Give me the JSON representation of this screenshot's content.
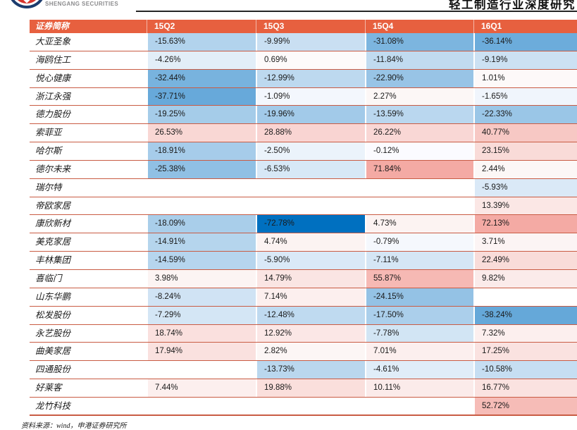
{
  "header": {
    "logo_text": "SHENGANG SECURITIES",
    "report_title": "轻工制造行业深度研究"
  },
  "table": {
    "columns": [
      "证券简称",
      "15Q2",
      "15Q3",
      "15Q4",
      "16Q1"
    ],
    "rows": [
      {
        "name": "大亚圣象",
        "values": [
          "-15.63%",
          "-9.99%",
          "-31.08%",
          "-36.14%"
        ]
      },
      {
        "name": "海鸥住工",
        "values": [
          "-4.26%",
          "0.69%",
          "-11.84%",
          "-9.19%"
        ]
      },
      {
        "name": "悦心健康",
        "values": [
          "-32.44%",
          "-12.99%",
          "-22.90%",
          "1.01%"
        ]
      },
      {
        "name": "浙江永强",
        "values": [
          "-37.71%",
          "-1.09%",
          "2.27%",
          "-1.65%"
        ]
      },
      {
        "name": "德力股份",
        "values": [
          "-19.25%",
          "-19.96%",
          "-13.59%",
          "-22.33%"
        ]
      },
      {
        "name": "索菲亚",
        "values": [
          "26.53%",
          "28.88%",
          "26.22%",
          "40.77%"
        ]
      },
      {
        "name": "哈尔斯",
        "values": [
          "-18.91%",
          "-2.50%",
          "-0.12%",
          "23.15%"
        ]
      },
      {
        "name": "德尔未来",
        "values": [
          "-25.38%",
          "-6.53%",
          "71.84%",
          "2.44%"
        ]
      },
      {
        "name": "瑞尔特",
        "values": [
          "",
          "",
          "",
          "-5.93%"
        ]
      },
      {
        "name": "帝欧家居",
        "values": [
          "",
          "",
          "",
          "13.39%"
        ]
      },
      {
        "name": "康欣新材",
        "values": [
          "-18.09%",
          "-72.78%",
          "4.73%",
          "72.13%"
        ]
      },
      {
        "name": "美克家居",
        "values": [
          "-14.91%",
          "4.74%",
          "-0.79%",
          "3.71%"
        ]
      },
      {
        "name": "丰林集团",
        "values": [
          "-14.59%",
          "-5.90%",
          "-7.11%",
          "22.49%"
        ]
      },
      {
        "name": "喜临门",
        "values": [
          "3.98%",
          "14.79%",
          "55.87%",
          "9.82%"
        ]
      },
      {
        "name": "山东华鹏",
        "values": [
          "-8.24%",
          "7.14%",
          "-24.15%",
          ""
        ]
      },
      {
        "name": "松发股份",
        "values": [
          "-7.29%",
          "-12.48%",
          "-17.50%",
          "-38.24%"
        ]
      },
      {
        "name": "永艺股份",
        "values": [
          "18.74%",
          "12.92%",
          "-7.78%",
          "7.32%"
        ]
      },
      {
        "name": "曲美家居",
        "values": [
          "17.94%",
          "2.82%",
          "7.01%",
          "17.25%"
        ]
      },
      {
        "name": "四通股份",
        "values": [
          "",
          "-13.73%",
          "-4.61%",
          "-10.58%"
        ]
      },
      {
        "name": "好莱客",
        "values": [
          "7.44%",
          "19.88%",
          "10.11%",
          "16.77%"
        ]
      },
      {
        "name": "龙竹科技",
        "values": [
          "",
          "",
          "",
          "52.72%"
        ]
      }
    ]
  },
  "footer": {
    "source": "资料来源：wind，申港证券研究所"
  },
  "colors": {
    "header_bg": "#E7603F",
    "row_line": "#C95C44",
    "negative_strong": "#0070C0",
    "positive_strong": "#F4A9A3",
    "logo_navy": "#1C3C6E",
    "logo_red": "#D6342C"
  },
  "heatmap": {
    "span": 72.78,
    "gamma": 0.8
  }
}
